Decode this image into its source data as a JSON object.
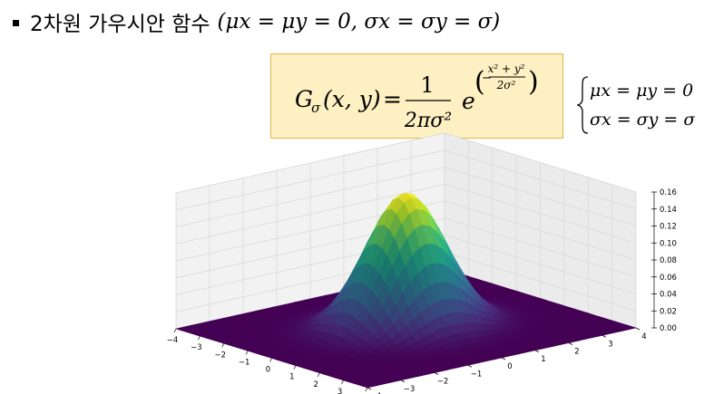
{
  "slide": {
    "bullet_text": "2차원 가우시안 함수",
    "bullet_math": "(μx = μy = 0, σx = σy = σ)"
  },
  "formula": {
    "lhs_symbol": "G",
    "lhs_sub": "σ",
    "lhs_args": "(x, y)",
    "equals": "=",
    "numerator": "1",
    "denominator": "2πσ²",
    "exp_base": "e",
    "exp_numerator": "x² + y²",
    "exp_denominator": "2σ²",
    "exp_sign": "−"
  },
  "conditions": {
    "line1": "μx = μy = 0",
    "line2": "σx = σy = σ"
  },
  "chart_data": {
    "type": "surface3d",
    "function": "G(x,y) = exp(-(x^2+y^2)/(2σ^2)) / (2πσ^2), σ = 1",
    "sigma": 1,
    "x_ticks": [
      "−4",
      "−3",
      "−2",
      "−1",
      "0",
      "1",
      "2",
      "3",
      "4"
    ],
    "y_ticks": [
      "−4",
      "−3",
      "−2",
      "−1",
      "0",
      "1",
      "2",
      "3",
      "4"
    ],
    "z_ticks": [
      "0.00",
      "0.02",
      "0.04",
      "0.06",
      "0.08",
      "0.10",
      "0.12",
      "0.14",
      "0.16"
    ],
    "xlim": [
      -4,
      4
    ],
    "ylim": [
      -4,
      4
    ],
    "zlim": [
      0,
      0.16
    ],
    "peak": 0.159,
    "colormap": "viridis",
    "grid": true
  }
}
